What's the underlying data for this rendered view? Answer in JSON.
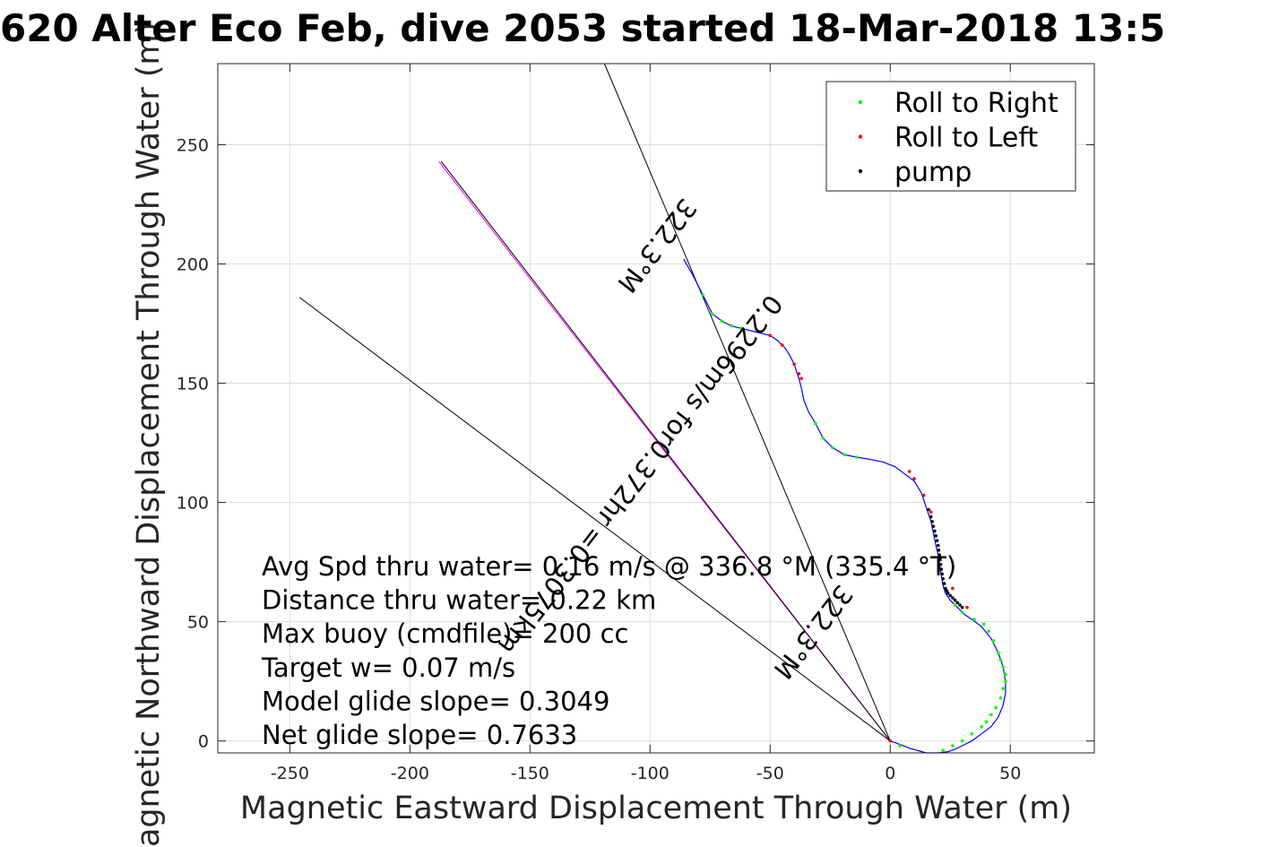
{
  "chart_data": {
    "type": "line",
    "title": "620 Alter Eco Feb, dive 2053 started 18-Mar-2018 13:5",
    "xlabel": "Magnetic Eastward Displacement Through Water (m)",
    "ylabel": "Magnetic Northward Displacement Through Water (m)",
    "xlim": [
      -280,
      85
    ],
    "ylim": [
      -5,
      284
    ],
    "xticks": [
      -250,
      -200,
      -150,
      -100,
      -50,
      0,
      50
    ],
    "yticks": [
      0,
      50,
      100,
      150,
      200,
      250
    ],
    "grid": true,
    "legend_position": "top-right",
    "legend": [
      {
        "label": "Roll to Right",
        "color": "#00ff00"
      },
      {
        "label": "Roll to Left",
        "color": "#ff0000"
      },
      {
        "label": "pump",
        "color": "#000000"
      }
    ],
    "track": {
      "color": "#0000ff",
      "x": [
        -86,
        -82,
        -78,
        -74,
        -70,
        -66,
        -62,
        -58,
        -54,
        -50,
        -47,
        -44,
        -42,
        -40,
        -39,
        -38,
        -37,
        -36,
        -34,
        -31,
        -28,
        -24,
        -19,
        -14,
        -8,
        -3,
        2,
        6,
        10,
        13,
        15,
        17,
        18,
        19,
        20,
        20.5,
        21,
        21.5,
        22,
        23,
        25,
        28,
        31,
        34,
        38,
        42,
        45,
        47,
        48,
        48,
        47,
        45,
        42,
        38,
        34,
        30,
        27,
        24,
        20,
        15,
        8,
        3,
        0
      ],
      "y": [
        202,
        195,
        187,
        179,
        176,
        174,
        173,
        172,
        171,
        170,
        168,
        165,
        162,
        158,
        155,
        152,
        148,
        143,
        138,
        133,
        127,
        123,
        120,
        119,
        118,
        117,
        115,
        112,
        109,
        104,
        98,
        92,
        87,
        82,
        78,
        74,
        71,
        68,
        65,
        62,
        59,
        56,
        53,
        51,
        48,
        43,
        37,
        31,
        25,
        20,
        15,
        10,
        6,
        3,
        0,
        -2,
        -3.5,
        -4.5,
        -5,
        -5,
        -3,
        -1,
        0
      ]
    },
    "roll_right": {
      "x": [
        -78,
        -74,
        -70,
        -66,
        -62,
        -31,
        -28,
        -24,
        -19,
        -14,
        4,
        27,
        30,
        35,
        39,
        41,
        43,
        45,
        46,
        47,
        48,
        48,
        47,
        46,
        44,
        42,
        40,
        38,
        34,
        30,
        26,
        22
      ],
      "y": [
        187,
        179,
        176,
        174,
        173,
        133,
        127,
        123,
        120,
        119,
        -2,
        57,
        54,
        51,
        49,
        46,
        42,
        37,
        34,
        31,
        28,
        25,
        22,
        18,
        14,
        11,
        8,
        6,
        3,
        0,
        -2,
        -4
      ]
    },
    "roll_left": {
      "x": [
        -50,
        -45,
        -40,
        -38,
        -37,
        8,
        10,
        14,
        17,
        26,
        32,
        0
      ],
      "y": [
        170,
        166,
        158,
        154,
        152,
        113,
        110,
        103,
        96,
        64,
        56,
        0
      ]
    },
    "pump": {
      "x": [
        16,
        17,
        17.5,
        18,
        18.5,
        19,
        19.5,
        20,
        20.2,
        20.5,
        20.8,
        21,
        21.3,
        21.6,
        22,
        22.5,
        23,
        23.5,
        24,
        25,
        26,
        27,
        28,
        29,
        30
      ],
      "y": [
        97,
        94,
        92,
        90,
        88,
        86,
        84,
        82,
        80,
        78,
        76,
        74,
        72,
        70,
        68,
        66,
        64,
        63,
        62,
        61,
        60,
        59,
        58,
        57,
        56
      ]
    },
    "reference_lines": [
      {
        "x": [
          0,
          -119
        ],
        "y": [
          0,
          284
        ],
        "color": "#000000"
      },
      {
        "x": [
          0,
          -246
        ],
        "y": [
          0,
          186
        ],
        "color": "#000000"
      },
      {
        "x": [
          0,
          -188
        ],
        "y": [
          0,
          243
        ],
        "color": "#ff00ff"
      },
      {
        "x": [
          0,
          -187
        ],
        "y": [
          0,
          243
        ],
        "color": "#000000"
      }
    ],
    "line_labels": [
      {
        "text": "322.3°M",
        "x": -100,
        "y": 210,
        "angle": -127.7
      },
      {
        "text": "0.2296m/s for0.372hr =0.3075km",
        "x": -107,
        "y": 114,
        "angle": -127.7
      },
      {
        "text": "322.3°M",
        "x": -35,
        "y": 48,
        "angle": -127.7
      }
    ],
    "annotations": [
      "Avg Spd thru water=  0.16 m/s @ 336.8 °M (335.4 °T)",
      "Distance thru water=  0.22 km",
      "Max buoy (cmdfile)= 200 cc",
      "Target w= 0.07 m/s",
      "Model glide slope= 0.3049",
      "Net glide slope= 0.7633"
    ]
  }
}
